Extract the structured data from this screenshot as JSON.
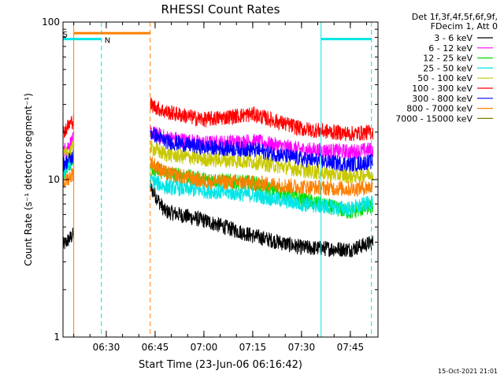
{
  "chart_data": {
    "type": "line",
    "title": "RHESSI Count Rates",
    "xlabel": "Start Time (23-Jun-06 06:16:42)",
    "ylabel": "Count Rate (s⁻¹ detector segment⁻¹)",
    "y_scale": "log",
    "ylim": [
      1,
      100
    ],
    "y_ticks": [
      {
        "value": 1,
        "label": "1"
      },
      {
        "value": 10,
        "label": "10"
      },
      {
        "value": 100,
        "label": "100"
      }
    ],
    "xlim": [
      "06:16:42",
      "07:53:30"
    ],
    "x_ticks": [
      {
        "time": "06:30",
        "label": "06:30"
      },
      {
        "time": "06:45",
        "label": "06:45"
      },
      {
        "time": "07:00",
        "label": "07:00"
      },
      {
        "time": "07:15",
        "label": "07:15"
      },
      {
        "time": "07:30",
        "label": "07:30"
      },
      {
        "time": "07:45",
        "label": "07:45"
      }
    ],
    "legend_position": "top-right",
    "legend_header": [
      "Det 1f,3f,4f,5f,6f,9f,",
      "FDecim 1, Att 0"
    ],
    "series": [
      {
        "name": "3 - 6 keV",
        "color": "#000000",
        "x": [
          "06:16:42",
          "06:20:00",
          "06:43:30",
          "06:48:00",
          "07:00:00",
          "07:15:00",
          "07:30:00",
          "07:45:00",
          "07:52:00"
        ],
        "y": [
          3.8,
          4.5,
          9.0,
          6.3,
          5.5,
          4.4,
          3.7,
          3.6,
          4.0
        ]
      },
      {
        "name": "6 - 12 keV",
        "color": "#ff00ff",
        "x": [
          "06:16:42",
          "06:20:00",
          "06:43:30",
          "06:48:00",
          "07:00:00",
          "07:15:00",
          "07:30:00",
          "07:45:00",
          "07:52:00"
        ],
        "y": [
          15.0,
          18.0,
          20.0,
          18.5,
          17.0,
          17.5,
          15.5,
          15.0,
          15.5
        ]
      },
      {
        "name": "12 - 25 keV",
        "color": "#00dd00",
        "x": [
          "06:16:42",
          "06:20:00",
          "06:43:30",
          "06:48:00",
          "07:00:00",
          "07:15:00",
          "07:30:00",
          "07:45:00",
          "07:52:00"
        ],
        "y": [
          11.0,
          14.0,
          12.0,
          11.0,
          10.0,
          9.5,
          7.5,
          6.2,
          6.8
        ]
      },
      {
        "name": "25 - 50 keV",
        "color": "#00e5e5",
        "x": [
          "06:16:42",
          "06:20:00",
          "06:43:30",
          "06:48:00",
          "07:00:00",
          "07:15:00",
          "07:30:00",
          "07:45:00",
          "07:52:00"
        ],
        "y": [
          11.0,
          13.5,
          10.0,
          9.0,
          8.5,
          8.0,
          7.0,
          6.5,
          7.2
        ]
      },
      {
        "name": "50 - 100 keV",
        "color": "#c8c800",
        "x": [
          "06:16:42",
          "06:20:00",
          "06:43:30",
          "06:48:00",
          "07:00:00",
          "07:15:00",
          "07:30:00",
          "07:45:00",
          "07:52:00"
        ],
        "y": [
          14.0,
          16.0,
          16.0,
          14.5,
          13.5,
          13.0,
          11.5,
          10.5,
          11.0
        ]
      },
      {
        "name": "100 - 300 keV",
        "color": "#ff0000",
        "x": [
          "06:16:42",
          "06:20:00",
          "06:43:30",
          "06:48:00",
          "07:00:00",
          "07:15:00",
          "07:30:00",
          "07:45:00",
          "07:52:00"
        ],
        "y": [
          20.0,
          24.0,
          30.0,
          27.0,
          24.0,
          26.0,
          21.0,
          19.5,
          20.0
        ]
      },
      {
        "name": "300 - 800 keV",
        "color": "#0000ff",
        "x": [
          "06:16:42",
          "06:20:00",
          "06:43:30",
          "06:48:00",
          "07:00:00",
          "07:15:00",
          "07:30:00",
          "07:45:00",
          "07:52:00"
        ],
        "y": [
          12.5,
          14.0,
          20.0,
          17.5,
          16.0,
          15.5,
          13.5,
          12.5,
          13.0
        ]
      },
      {
        "name": "800 - 7000 keV",
        "color": "#ff7f00",
        "x": [
          "06:16:42",
          "06:20:00",
          "06:43:30",
          "06:48:00",
          "07:00:00",
          "07:15:00",
          "07:30:00",
          "07:45:00",
          "07:52:00"
        ],
        "y": [
          9.5,
          11.0,
          13.0,
          11.0,
          9.8,
          9.5,
          9.0,
          8.7,
          9.0
        ]
      },
      {
        "name": "7000 - 15000 keV",
        "color": "#7f7f00",
        "x": [],
        "y": []
      }
    ],
    "intervals": [
      {
        "label": "S",
        "color": "#ff7f00",
        "start": "06:20:00",
        "end": "06:43:30",
        "bar_level": 85
      },
      {
        "label": "N",
        "color": "#00e5e5",
        "start": "06:16:42",
        "end": "06:28:30",
        "bar_level": 78
      },
      {
        "label": "",
        "color": "#00e5e5",
        "start": "07:36:00",
        "end": "07:51:30",
        "bar_level": 78
      }
    ],
    "footer_date": "15-Oct-2021 21:01"
  }
}
